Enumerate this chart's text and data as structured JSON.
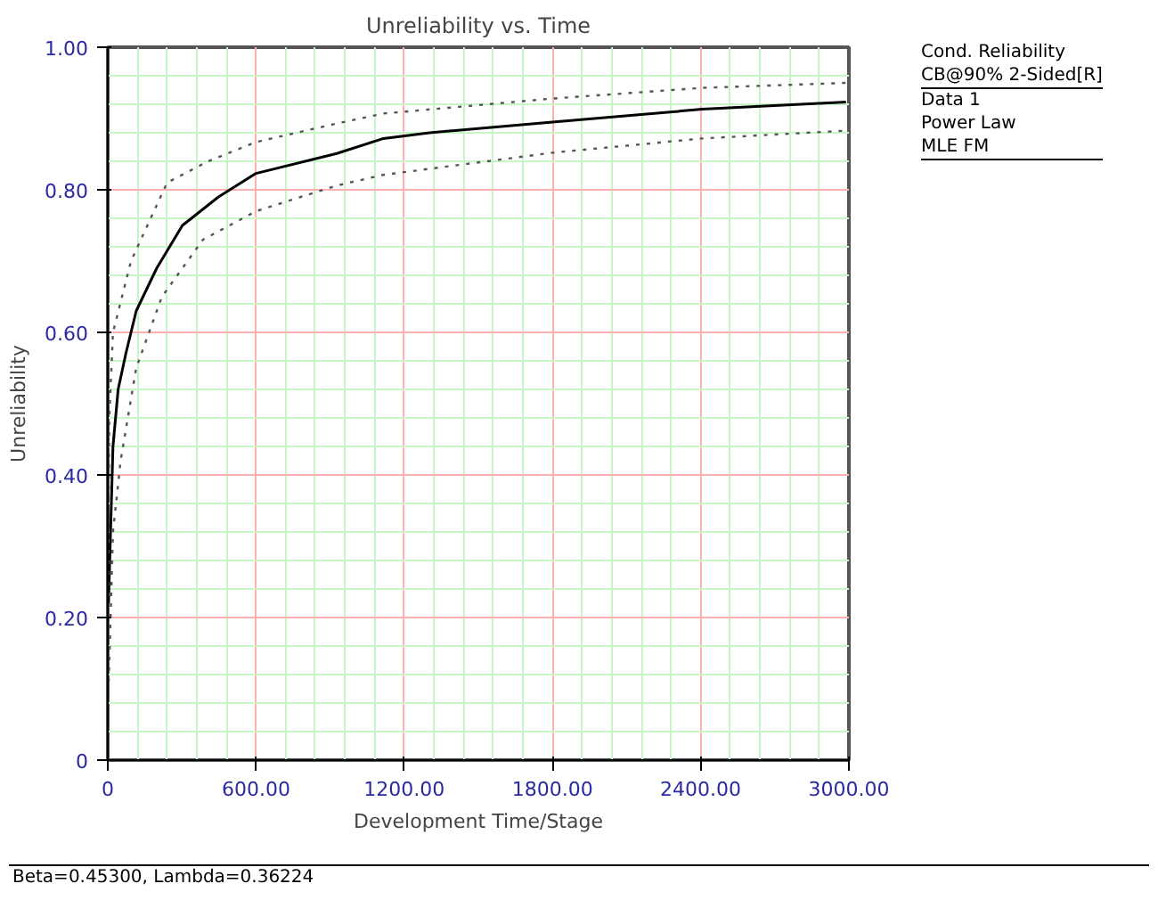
{
  "chart_data": {
    "type": "line",
    "title": "Unreliability vs. Time",
    "xlabel": "Development Time/Stage",
    "ylabel": "Unreliability",
    "annotations": [
      "Cond. Reliability",
      "CB@90% 2-Sided[R]",
      "Data 1",
      "Power Law",
      "MLE FM",
      "Beta=0.45300, Lambda=0.36224"
    ],
    "xlim": [
      0,
      3000
    ],
    "ylim": [
      0,
      1
    ],
    "xticks": [
      0,
      {
        "value": 120,
        "label": null
      },
      {
        "value": 240,
        "label": null
      },
      {
        "value": 360,
        "label": null
      },
      {
        "value": 480,
        "label": null
      },
      {
        "value": 600,
        "label": "600.00"
      },
      {
        "value": 720,
        "label": null
      },
      {
        "value": 840,
        "label": null
      },
      {
        "value": 960,
        "label": null
      },
      {
        "value": 1080,
        "label": null
      },
      {
        "value": 1200,
        "label": "1200.00"
      },
      {
        "value": 1320,
        "label": null
      },
      {
        "value": 1440,
        "label": null
      },
      {
        "value": 1560,
        "label": null
      },
      {
        "value": 1680,
        "label": null
      },
      {
        "value": 1800,
        "label": "1800.00"
      },
      {
        "value": 1920,
        "label": null
      },
      {
        "value": 2040,
        "label": null
      },
      {
        "value": 2160,
        "label": null
      },
      {
        "value": 2280,
        "label": null
      },
      {
        "value": 2400,
        "label": "2400.00"
      },
      {
        "value": 2520,
        "label": null
      },
      {
        "value": 2640,
        "label": null
      },
      {
        "value": 2760,
        "label": null
      },
      {
        "value": 2880,
        "label": null
      },
      {
        "value": 3000,
        "label": "3000.00"
      }
    ],
    "yticks": [
      0,
      {
        "value": 0.04,
        "label": null
      },
      {
        "value": 0.08,
        "label": null
      },
      {
        "value": 0.12,
        "label": null
      },
      {
        "value": 0.16,
        "label": null
      },
      {
        "value": 0.2,
        "label": "0.20"
      },
      {
        "value": 0.24,
        "label": null
      },
      {
        "value": 0.28,
        "label": null
      },
      {
        "value": 0.32,
        "label": null
      },
      {
        "value": 0.36,
        "label": null
      },
      {
        "value": 0.4,
        "label": "0.40"
      },
      {
        "value": 0.44,
        "label": null
      },
      {
        "value": 0.48,
        "label": null
      },
      {
        "value": 0.52,
        "label": null
      },
      {
        "value": 0.56,
        "label": null
      },
      {
        "value": 0.6,
        "label": "0.60"
      },
      {
        "value": 0.64,
        "label": null
      },
      {
        "value": 0.68,
        "label": null
      },
      {
        "value": 0.72,
        "label": null
      },
      {
        "value": 0.76,
        "label": null
      },
      {
        "value": 0.8,
        "label": "0.80"
      },
      {
        "value": 0.84,
        "label": null
      },
      {
        "value": 0.88,
        "label": null
      },
      {
        "value": 0.92,
        "label": null
      },
      {
        "value": 0.96,
        "label": null
      },
      {
        "value": 1,
        "label": "1.00"
      }
    ],
    "grid": true,
    "series": [
      {
        "color": "#000000",
        "line_style": "solid",
        "x": [
          3,
          21,
          42,
          73,
          115,
          198,
          302,
          448,
          600,
          927,
          1116,
          1302,
          1800,
          2406,
          2988
        ],
        "values": [
          0.22,
          0.44,
          0.52,
          0.57,
          0.63,
          0.69,
          0.75,
          0.79,
          0.823,
          0.851,
          0.872,
          0.88,
          0.895,
          0.913,
          0.923
        ]
      },
      {
        "color": "#555555",
        "line_style": "dotted",
        "x": [
          0,
          6,
          21,
          94,
          240,
          406,
          600,
          927,
          1116,
          1800,
          2406,
          2988
        ],
        "values": [
          0.11,
          0.48,
          0.6,
          0.7,
          0.81,
          0.84,
          0.867,
          0.893,
          0.907,
          0.928,
          0.943,
          0.95
        ]
      },
      {
        "color": "#555555",
        "line_style": "dotted",
        "x": [
          4,
          21,
          52,
          115,
          219,
          385,
          600,
          927,
          1116,
          1800,
          2406,
          2988
        ],
        "values": [
          0.11,
          0.32,
          0.42,
          0.55,
          0.65,
          0.73,
          0.77,
          0.806,
          0.821,
          0.852,
          0.872,
          0.883
        ]
      }
    ]
  }
}
